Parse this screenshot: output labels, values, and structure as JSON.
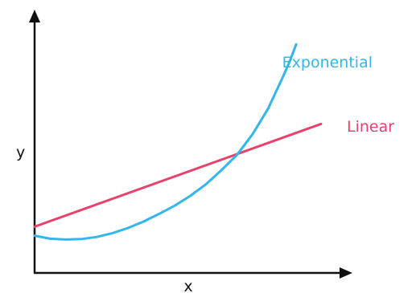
{
  "chart_data": {
    "type": "line",
    "xlabel": "x",
    "ylabel": "y",
    "xlim": [
      0,
      10
    ],
    "ylim": [
      0,
      10
    ],
    "grid": false,
    "series": [
      {
        "name": "Linear",
        "color": "#e8416c",
        "x": [
          0,
          9.2
        ],
        "y": [
          1.8,
          5.8
        ]
      },
      {
        "name": "Exponential",
        "color": "#35b6ea",
        "x": [
          0,
          0.5,
          1,
          1.5,
          2,
          2.5,
          3,
          3.5,
          4,
          4.5,
          5,
          5.5,
          6,
          6.5,
          7,
          7.5,
          8,
          8.2,
          8.4
        ],
        "y": [
          1.45,
          1.33,
          1.3,
          1.32,
          1.4,
          1.55,
          1.75,
          2.0,
          2.3,
          2.62,
          3.0,
          3.45,
          4.0,
          4.6,
          5.4,
          6.4,
          7.7,
          8.25,
          8.9
        ]
      }
    ]
  }
}
